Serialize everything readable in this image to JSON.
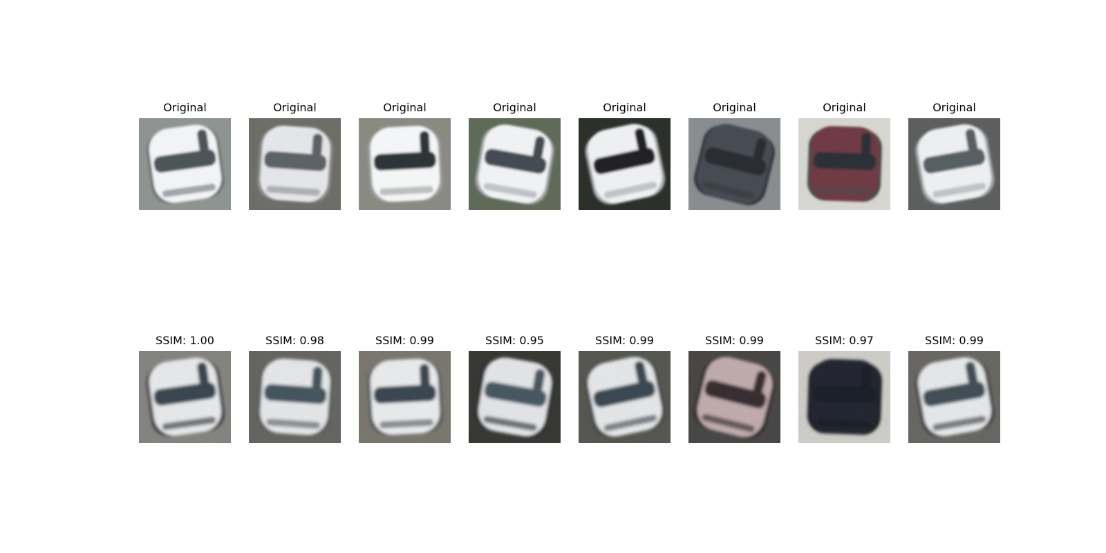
{
  "rows": [
    {
      "name": "original",
      "panels": [
        {
          "title": "Original",
          "bg": "#8e948f",
          "body": "#f2f3f5",
          "win": "#4d5458",
          "edge": "#6c7276",
          "noisy": false
        },
        {
          "title": "Original",
          "bg": "#6f6d67",
          "body": "#e4e5e8",
          "win": "#5c6266",
          "edge": "#8a8c8e",
          "noisy": false
        },
        {
          "title": "Original",
          "bg": "#8a8a82",
          "body": "#f4f5f6",
          "win": "#2f3638",
          "edge": "#9a9c9c",
          "noisy": false
        },
        {
          "title": "Original",
          "bg": "#5f6a58",
          "body": "#f0f1f3",
          "win": "#454c52",
          "edge": "#9fa3a8",
          "noisy": false
        },
        {
          "title": "Original",
          "bg": "#2b302a",
          "body": "#eeeff1",
          "win": "#202428",
          "edge": "#a3a6aa",
          "noisy": false
        },
        {
          "title": "Original",
          "bg": "#8a8d8f",
          "body": "#474c52",
          "win": "#2a2e33",
          "edge": "#35393e",
          "noisy": false
        },
        {
          "title": "Original",
          "bg": "#d4d6cf",
          "body": "#6f3a44",
          "win": "#2c3137",
          "edge": "#4a4c4e",
          "noisy": false
        },
        {
          "title": "Original",
          "bg": "#5d5f5e",
          "body": "#eceef0",
          "win": "#585e63",
          "edge": "#a2a6aa",
          "noisy": false
        }
      ]
    },
    {
      "name": "reconstruction",
      "panels": [
        {
          "title": "SSIM: 1.00",
          "bg": "#8b8a86",
          "body": "#f1f2f4",
          "win": "#3c4b57",
          "edge": "#2b3035",
          "noisy": true
        },
        {
          "title": "SSIM: 0.98",
          "bg": "#6b6a66",
          "body": "#eef0f2",
          "win": "#4a5a64",
          "edge": "#5a5e62",
          "noisy": true
        },
        {
          "title": "SSIM: 0.99",
          "bg": "#807d74",
          "body": "#f3f4f6",
          "win": "#3e4c56",
          "edge": "#54585c",
          "noisy": true
        },
        {
          "title": "SSIM: 0.95",
          "bg": "#3b3b37",
          "body": "#eceef1",
          "win": "#4c5d68",
          "edge": "#2a2d30",
          "noisy": true
        },
        {
          "title": "SSIM: 0.99",
          "bg": "#5a5c55",
          "body": "#eef0f2",
          "win": "#3d4d58",
          "edge": "#44484c",
          "noisy": true
        },
        {
          "title": "SSIM: 0.99",
          "bg": "#4d4b4a",
          "body": "#c9b3b5",
          "win": "#3a3335",
          "edge": "#2f2b2c",
          "noisy": true
        },
        {
          "title": "SSIM: 0.97",
          "bg": "#d7d6d0",
          "body": "#262b35",
          "win": "#1f242c",
          "edge": "#1a1d22",
          "noisy": true
        },
        {
          "title": "SSIM: 0.99",
          "bg": "#6e6c68",
          "body": "#eff1f3",
          "win": "#44525c",
          "edge": "#3a3e42",
          "noisy": true
        }
      ]
    }
  ]
}
